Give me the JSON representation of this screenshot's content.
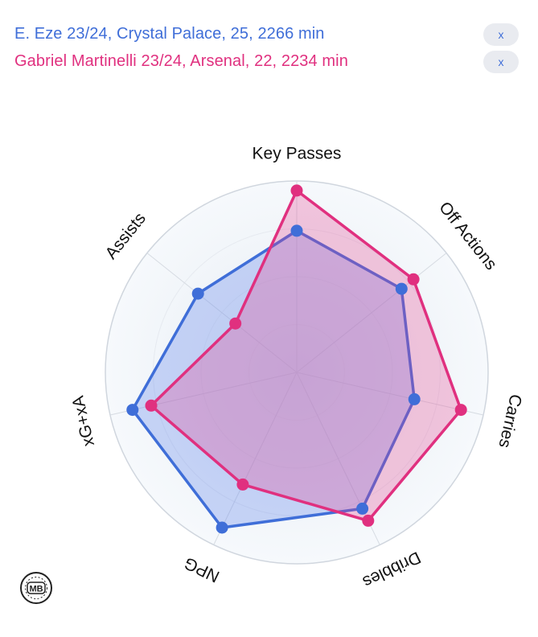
{
  "legend": [
    {
      "label": "E. Eze 23/24, Crystal Palace, 25, 2266 min",
      "color": "#3f6ed8",
      "remove_label": "x"
    },
    {
      "label": "Gabriel Martinelli 23/24, Arsenal, 22, 2234 min",
      "color": "#e0307f",
      "remove_label": "x"
    }
  ],
  "logo_text": "MB",
  "chart_data": {
    "type": "radar",
    "axes": [
      "Key Passes",
      "Off Actions",
      "Carries",
      "Dribbles",
      "NPG",
      "xG+xA",
      "Assists"
    ],
    "rmax": 100,
    "grid": true,
    "series": [
      {
        "name": "E. Eze 23/24, Crystal Palace, 25, 2266 min",
        "color": "#3f6ed8",
        "values": [
          74,
          70,
          63,
          79,
          90,
          88,
          66
        ]
      },
      {
        "name": "Gabriel Martinelli 23/24, Arsenal, 22, 2234 min",
        "color": "#e0307f",
        "values": [
          95,
          78,
          88,
          86,
          65,
          78,
          41
        ]
      }
    ]
  }
}
